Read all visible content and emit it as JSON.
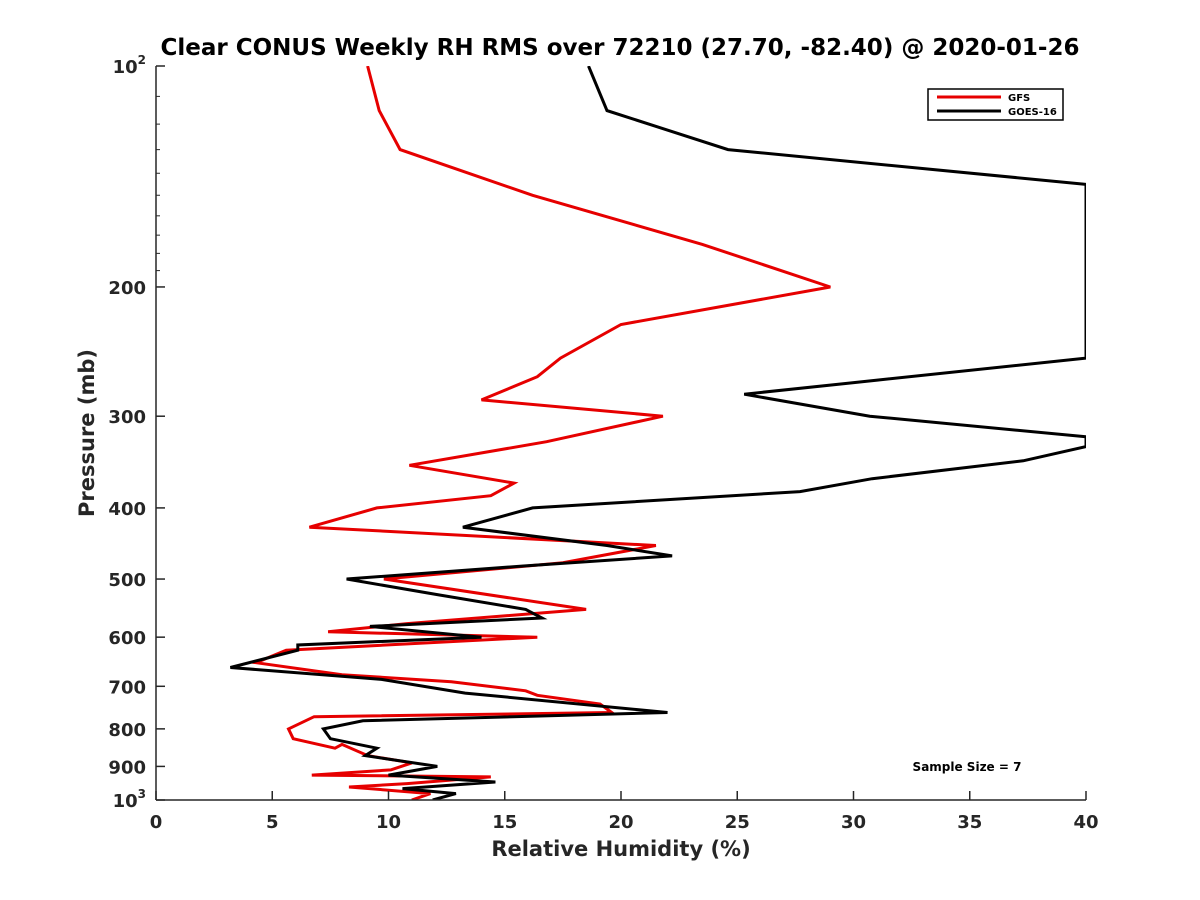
{
  "chart_data": {
    "type": "line",
    "title": "Clear CONUS Weekly RH RMS over 72210 (27.70, -82.40) @ 2020-01-26",
    "xlabel": "Relative Humidity (%)",
    "ylabel": "Pressure (mb)",
    "xlim": [
      0,
      40
    ],
    "ylim": [
      100,
      1000
    ],
    "yscale": "log",
    "y_reversed": true,
    "grid": false,
    "legend_position": "top-right",
    "x_ticks": [
      "0",
      "5",
      "10",
      "15",
      "20",
      "25",
      "30",
      "35",
      "40"
    ],
    "y_ticks": [
      {
        "value": 100,
        "base": "10",
        "exp": "2"
      },
      {
        "value": 200,
        "label": "200"
      },
      {
        "value": 300,
        "label": "300"
      },
      {
        "value": 400,
        "label": "400"
      },
      {
        "value": 500,
        "label": "500"
      },
      {
        "value": 600,
        "label": "600"
      },
      {
        "value": 700,
        "label": "700"
      },
      {
        "value": 800,
        "label": "800"
      },
      {
        "value": 900,
        "label": "900"
      },
      {
        "value": 1000,
        "base": "10",
        "exp": "3"
      }
    ],
    "annotation": "Sample Size = 7",
    "series": [
      {
        "name": "GFS",
        "color": "#e60000",
        "points": [
          [
            9.1,
            100
          ],
          [
            9.6,
            115
          ],
          [
            10.5,
            130
          ],
          [
            16.2,
            150
          ],
          [
            23.5,
            175
          ],
          [
            29.0,
            200
          ],
          [
            20.0,
            225
          ],
          [
            17.4,
            250
          ],
          [
            16.4,
            265
          ],
          [
            14.0,
            285
          ],
          [
            21.8,
            300
          ],
          [
            16.8,
            325
          ],
          [
            10.9,
            350
          ],
          [
            15.4,
            370
          ],
          [
            14.4,
            385
          ],
          [
            9.5,
            400
          ],
          [
            6.6,
            425
          ],
          [
            21.5,
            450
          ],
          [
            17.5,
            475
          ],
          [
            9.8,
            500
          ],
          [
            18.5,
            550
          ],
          [
            10.8,
            575
          ],
          [
            7.4,
            590
          ],
          [
            16.4,
            600
          ],
          [
            5.6,
            625
          ],
          [
            4.3,
            650
          ],
          [
            8.0,
            675
          ],
          [
            12.7,
            690
          ],
          [
            15.9,
            710
          ],
          [
            16.4,
            720
          ],
          [
            19.1,
            740
          ],
          [
            19.6,
            760
          ],
          [
            6.8,
            770
          ],
          [
            5.7,
            800
          ],
          [
            5.9,
            825
          ],
          [
            7.7,
            850
          ],
          [
            8.0,
            840
          ],
          [
            9.1,
            870
          ],
          [
            11.0,
            890
          ],
          [
            10.1,
            910
          ],
          [
            6.7,
            925
          ],
          [
            14.4,
            930
          ],
          [
            10.8,
            950
          ],
          [
            8.3,
            960
          ],
          [
            11.8,
            980
          ],
          [
            11.0,
            1000
          ]
        ]
      },
      {
        "name": "GOES-16",
        "color": "#000000",
        "points": [
          [
            18.6,
            100
          ],
          [
            19.4,
            115
          ],
          [
            24.6,
            130
          ],
          [
            40.0,
            145
          ],
          [
            40.0,
            250
          ],
          [
            25.3,
            280
          ],
          [
            30.7,
            300
          ],
          [
            40.0,
            320
          ],
          [
            40.0,
            330
          ],
          [
            37.3,
            345
          ],
          [
            30.8,
            365
          ],
          [
            27.7,
            380
          ],
          [
            16.2,
            400
          ],
          [
            13.2,
            425
          ],
          [
            19.4,
            450
          ],
          [
            22.2,
            465
          ],
          [
            15.8,
            480
          ],
          [
            8.2,
            500
          ],
          [
            12.1,
            525
          ],
          [
            15.9,
            550
          ],
          [
            16.6,
            565
          ],
          [
            9.2,
            580
          ],
          [
            14.0,
            600
          ],
          [
            6.1,
            615
          ],
          [
            6.1,
            625
          ],
          [
            3.2,
            660
          ],
          [
            9.7,
            685
          ],
          [
            13.3,
            715
          ],
          [
            22.0,
            760
          ],
          [
            8.9,
            780
          ],
          [
            7.2,
            800
          ],
          [
            7.5,
            825
          ],
          [
            9.5,
            850
          ],
          [
            9.0,
            870
          ],
          [
            12.1,
            900
          ],
          [
            10.0,
            925
          ],
          [
            14.6,
            945
          ],
          [
            10.6,
            965
          ],
          [
            12.9,
            980
          ],
          [
            11.9,
            1000
          ]
        ]
      }
    ]
  }
}
